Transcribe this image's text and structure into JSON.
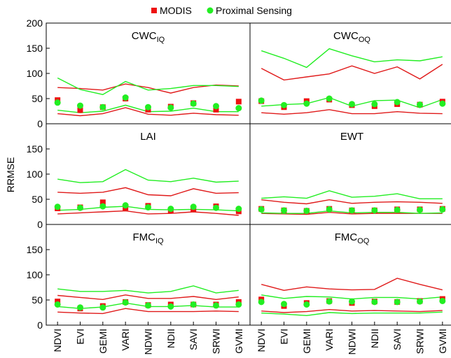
{
  "chart_data": {
    "type": "scatter",
    "ylabel": "RRMSE",
    "legend": {
      "placement": "top-center",
      "entries": [
        {
          "name": "MODIS",
          "color": "#ee1111",
          "marker": "square"
        },
        {
          "name": "Proximal Sensing",
          "color": "#22ee22",
          "marker": "circle"
        }
      ]
    },
    "categories": [
      "NDVI",
      "EVI",
      "GEMI",
      "VARI",
      "NDWI",
      "NDII",
      "SAVI",
      "SRWI",
      "GVMI"
    ],
    "ylim": [
      0,
      200
    ],
    "yticks": [
      0,
      50,
      100,
      150,
      200
    ],
    "grid": false,
    "panels": [
      {
        "id": "cwc-iq",
        "title_main": "CWC",
        "title_sub": "IQ",
        "modis": [
          47,
          27,
          33,
          50,
          28,
          34,
          41,
          28,
          44
        ],
        "proximal": [
          42,
          36,
          33,
          52,
          33,
          32,
          40,
          35,
          31
        ],
        "red_upper": [
          72,
          70,
          67,
          79,
          72,
          61,
          72,
          77,
          75
        ],
        "red_lower": [
          20,
          16,
          20,
          32,
          19,
          17,
          21,
          18,
          17
        ],
        "green_upper": [
          91,
          68,
          58,
          84,
          67,
          70,
          76,
          76,
          74
        ],
        "green_lower": [
          27,
          22,
          25,
          37,
          24,
          25,
          31,
          24,
          24
        ]
      },
      {
        "id": "cwc-oq",
        "title_main": "CWC",
        "title_sub": "OQ",
        "modis": [
          45,
          33,
          45,
          48,
          37,
          35,
          39,
          38,
          44
        ],
        "proximal": [
          46,
          37,
          40,
          50,
          39,
          39,
          43,
          38,
          40
        ],
        "red_upper": [
          110,
          87,
          93,
          99,
          115,
          100,
          113,
          89,
          118
        ],
        "red_lower": [
          22,
          19,
          22,
          28,
          20,
          20,
          24,
          21,
          20
        ],
        "green_upper": [
          145,
          130,
          112,
          149,
          135,
          123,
          127,
          125,
          133
        ],
        "green_lower": [
          35,
          38,
          40,
          52,
          35,
          46,
          47,
          32,
          48
        ]
      },
      {
        "id": "lai",
        "title_main": "LAI",
        "title_sub": "",
        "modis": [
          32,
          34,
          44,
          33,
          37,
          28,
          31,
          36,
          26
        ],
        "proximal": [
          35,
          33,
          36,
          38,
          34,
          31,
          35,
          33,
          31
        ],
        "red_upper": [
          64,
          62,
          64,
          73,
          59,
          57,
          71,
          62,
          63
        ],
        "red_lower": [
          21,
          23,
          25,
          27,
          21,
          22,
          25,
          22,
          18
        ],
        "green_upper": [
          90,
          83,
          85,
          109,
          88,
          85,
          92,
          84,
          86
        ],
        "green_lower": [
          28,
          30,
          34,
          36,
          30,
          29,
          30,
          29,
          27
        ]
      },
      {
        "id": "ewt",
        "title_main": "EWT",
        "title_sub": "",
        "modis": [
          31,
          28,
          27,
          31,
          28,
          28,
          30,
          30,
          31
        ],
        "proximal": [
          30,
          28,
          27,
          30,
          28,
          28,
          29,
          29,
          30
        ],
        "red_upper": [
          49,
          44,
          41,
          49,
          42,
          44,
          45,
          44,
          42
        ],
        "red_lower": [
          22,
          21,
          20,
          24,
          21,
          22,
          22,
          22,
          22
        ],
        "green_upper": [
          52,
          55,
          52,
          67,
          54,
          56,
          61,
          51,
          51
        ],
        "green_lower": [
          23,
          22,
          22,
          27,
          23,
          24,
          24,
          22,
          23
        ]
      },
      {
        "id": "fmc-iq",
        "title_main": "FMC",
        "title_sub": "IQ",
        "modis": [
          47,
          33,
          38,
          46,
          40,
          41,
          41,
          41,
          46
        ],
        "proximal": [
          41,
          35,
          35,
          45,
          39,
          37,
          41,
          39,
          41
        ],
        "red_upper": [
          59,
          55,
          51,
          60,
          53,
          53,
          57,
          51,
          56
        ],
        "red_lower": [
          26,
          24,
          23,
          33,
          27,
          27,
          27,
          28,
          27
        ],
        "green_upper": [
          72,
          67,
          67,
          69,
          64,
          67,
          78,
          64,
          69
        ],
        "green_lower": [
          37,
          33,
          36,
          44,
          37,
          37,
          39,
          36,
          36
        ]
      },
      {
        "id": "fmc-oq",
        "title_main": "FMC",
        "title_sub": "OQ",
        "modis": [
          51,
          38,
          44,
          48,
          44,
          47,
          46,
          48,
          52
        ],
        "proximal": [
          46,
          42,
          41,
          47,
          47,
          46,
          46,
          47,
          48
        ],
        "red_upper": [
          81,
          69,
          76,
          72,
          70,
          71,
          93,
          81,
          70
        ],
        "red_lower": [
          28,
          25,
          27,
          31,
          28,
          29,
          28,
          27,
          29
        ],
        "green_upper": [
          60,
          53,
          57,
          56,
          52,
          55,
          55,
          52,
          56
        ],
        "green_lower": [
          24,
          22,
          19,
          25,
          23,
          24,
          24,
          24,
          26
        ]
      }
    ]
  }
}
